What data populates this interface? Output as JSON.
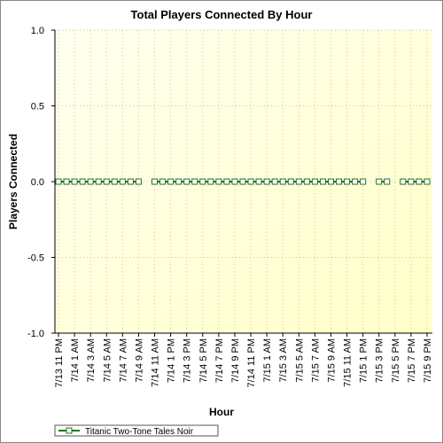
{
  "chart_data": {
    "type": "line",
    "title": "Total Players Connected By Hour",
    "x_label": "Hour",
    "y_label": "Players Connected",
    "categories": [
      "7/13 11 PM",
      null,
      "7/14 1 AM",
      null,
      "7/14 3 AM",
      null,
      "7/14 5 AM",
      null,
      "7/14 7 AM",
      null,
      "7/14 9 AM",
      null,
      "7/14 11 AM",
      null,
      "7/14 1 PM",
      null,
      "7/14 3 PM",
      null,
      "7/14 5 PM",
      null,
      "7/14 7 PM",
      null,
      "7/14 9 PM",
      null,
      "7/14 11 PM",
      null,
      "7/15 1 AM",
      null,
      "7/15 3 AM",
      null,
      "7/15 5 AM",
      null,
      "7/15 7 AM",
      null,
      "7/15 9 AM",
      null,
      "7/15 11 AM",
      null,
      "7/15 1 PM",
      null,
      "7/15 3 PM",
      null,
      "7/15 5 PM",
      null,
      "7/15 7 PM",
      null,
      "7/15 9 PM"
    ],
    "series": [
      {
        "name": "Titanic Two-Tone Tales Noir",
        "color": "#008000",
        "values": [
          0,
          0,
          0,
          0,
          0,
          0,
          0,
          0,
          0,
          0,
          0,
          null,
          0,
          0,
          0,
          0,
          0,
          0,
          0,
          0,
          0,
          0,
          0,
          0,
          0,
          0,
          0,
          0,
          0,
          0,
          0,
          0,
          0,
          0,
          0,
          0,
          0,
          0,
          0,
          null,
          0,
          0,
          null,
          0,
          0,
          0,
          0
        ]
      }
    ],
    "ylim": [
      -1,
      1
    ],
    "yticks": [
      {
        "value": -1,
        "label": "-1.0"
      },
      {
        "value": -0.5,
        "label": "-0.5"
      },
      {
        "value": 0,
        "label": "0.0"
      },
      {
        "value": 0.5,
        "label": "0.5"
      },
      {
        "value": 1,
        "label": "1.0"
      }
    ],
    "grid": true
  }
}
